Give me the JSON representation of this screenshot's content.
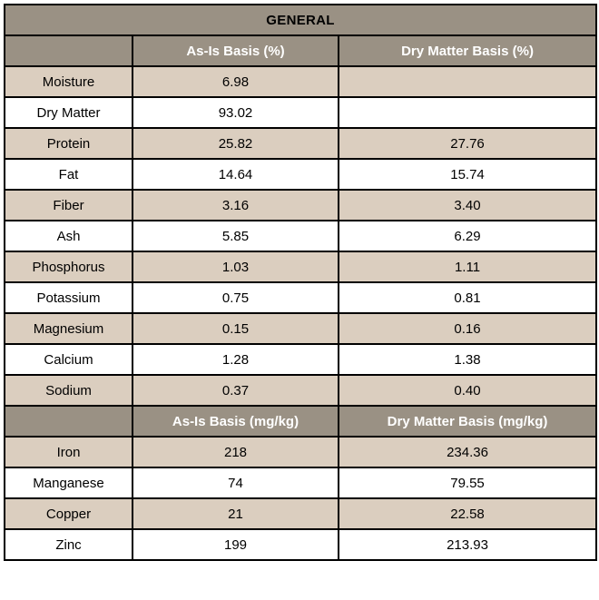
{
  "title": "GENERAL",
  "colors": {
    "band_bg": "#9A9184",
    "band_text": "#FFFFFF",
    "row_alt_bg": "#DBCEBF",
    "row_plain_bg": "#FFFFFF",
    "border": "#000000",
    "body_text": "#000000"
  },
  "percent_section": {
    "columns": {
      "label": "",
      "as_is": "As-Is Basis (%)",
      "dry": "Dry Matter Basis (%)"
    },
    "rows": [
      {
        "label": "Moisture",
        "as_is": "6.98",
        "dry": ""
      },
      {
        "label": "Dry Matter",
        "as_is": "93.02",
        "dry": ""
      },
      {
        "label": "Protein",
        "as_is": "25.82",
        "dry": "27.76"
      },
      {
        "label": "Fat",
        "as_is": "14.64",
        "dry": "15.74"
      },
      {
        "label": "Fiber",
        "as_is": "3.16",
        "dry": "3.40"
      },
      {
        "label": "Ash",
        "as_is": "5.85",
        "dry": "6.29"
      },
      {
        "label": "Phosphorus",
        "as_is": "1.03",
        "dry": "1.11"
      },
      {
        "label": "Potassium",
        "as_is": "0.75",
        "dry": "0.81"
      },
      {
        "label": "Magnesium",
        "as_is": "0.15",
        "dry": "0.16"
      },
      {
        "label": "Calcium",
        "as_is": "1.28",
        "dry": "1.38"
      },
      {
        "label": "Sodium",
        "as_is": "0.37",
        "dry": "0.40"
      }
    ]
  },
  "mgkg_section": {
    "columns": {
      "label": "",
      "as_is": "As-Is Basis (mg/kg)",
      "dry": "Dry Matter Basis (mg/kg)"
    },
    "rows": [
      {
        "label": "Iron",
        "as_is": "218",
        "dry": "234.36"
      },
      {
        "label": "Manganese",
        "as_is": "74",
        "dry": "79.55"
      },
      {
        "label": "Copper",
        "as_is": "21",
        "dry": "22.58"
      },
      {
        "label": "Zinc",
        "as_is": "199",
        "dry": "213.93"
      }
    ]
  }
}
